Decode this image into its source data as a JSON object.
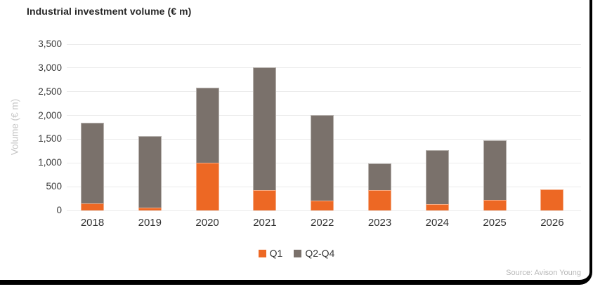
{
  "header": {
    "title": "Industrial investment volume (€ m)"
  },
  "footer": {
    "source": "Source: Avison Young"
  },
  "colors": {
    "q1_orange": "#ED6824",
    "q2q4_gray": "#7A716B",
    "gridline": "#EBEBEB",
    "title_text": "#262626",
    "tick_text": "#3C3C3C",
    "axis_title_text": "#C6C6C6",
    "source_text": "#B8B8B8",
    "frame": "#000000",
    "background": "#FFFFFF"
  },
  "chart_data": {
    "type": "bar",
    "stacked": true,
    "title": "Industrial investment volume (€ m)",
    "ylabel": "Volume (€ m)",
    "xlabel": "",
    "ylim": [
      0,
      3500
    ],
    "ytick_step": 500,
    "ytick_labels": [
      "0",
      "500",
      "1,000",
      "1,500",
      "2,000",
      "2,500",
      "3,000",
      "3,500"
    ],
    "grid": true,
    "legend_position": "bottom",
    "categories": [
      "2018",
      "2019",
      "2020",
      "2021",
      "2022",
      "2023",
      "2024",
      "2025",
      "2026"
    ],
    "series": [
      {
        "name": "Q1",
        "color": "#ED6824",
        "values": [
          150,
          60,
          1000,
          430,
          200,
          430,
          140,
          215,
          450
        ]
      },
      {
        "name": "Q2-Q4",
        "color": "#7A716B",
        "values": [
          1690,
          1500,
          1590,
          2590,
          1810,
          560,
          1130,
          1255,
          0
        ]
      }
    ],
    "totals": [
      1840,
      1560,
      2590,
      3020,
      2010,
      990,
      1270,
      1470,
      450
    ]
  }
}
